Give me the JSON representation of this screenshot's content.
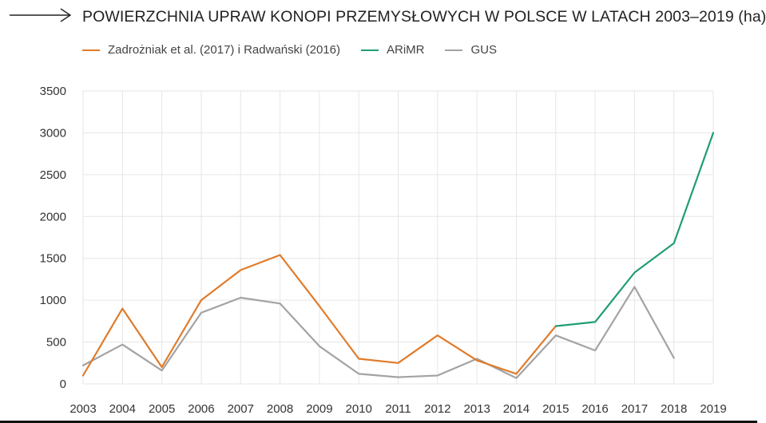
{
  "page": {
    "title": "POWIERZCHNIA UPRAW KONOPI PRZEMYSŁOWYCH W POLSCE W LATACH 2003–2019 (ha)",
    "arrow_icon": "arrow-right-icon"
  },
  "chart_data": {
    "type": "line",
    "title": "POWIERZCHNIA UPRAW KONOPI PRZEMYSŁOWYCH W POLSCE W LATACH 2003–2019 (ha)",
    "xlabel": "",
    "ylabel": "",
    "x": [
      "2003",
      "2004",
      "2005",
      "2006",
      "2007",
      "2008",
      "2009",
      "2010",
      "2011",
      "2012",
      "2013",
      "2014",
      "2015",
      "2016",
      "2017",
      "2018",
      "2019"
    ],
    "yticks": [
      "0",
      "500",
      "1000",
      "1500",
      "2000",
      "2500",
      "3000",
      "3500"
    ],
    "ylim": [
      0,
      3500
    ],
    "grid": true,
    "legend_position": "top-left",
    "series": [
      {
        "name": "Zadrożniak et al. (2017) i Radwański (2016)",
        "color": "#e07b2a",
        "values": [
          100,
          900,
          200,
          1000,
          1360,
          1540,
          930,
          300,
          250,
          580,
          280,
          120,
          690,
          null,
          null,
          null,
          null
        ]
      },
      {
        "name": "ARiMR",
        "color": "#1f9e74",
        "values": [
          null,
          null,
          null,
          null,
          null,
          null,
          null,
          null,
          null,
          null,
          null,
          null,
          690,
          740,
          1330,
          1680,
          3000
        ]
      },
      {
        "name": "GUS",
        "color": "#a3a3a3",
        "values": [
          220,
          470,
          160,
          850,
          1030,
          960,
          450,
          120,
          80,
          100,
          300,
          70,
          580,
          400,
          1160,
          310,
          null
        ]
      }
    ]
  }
}
